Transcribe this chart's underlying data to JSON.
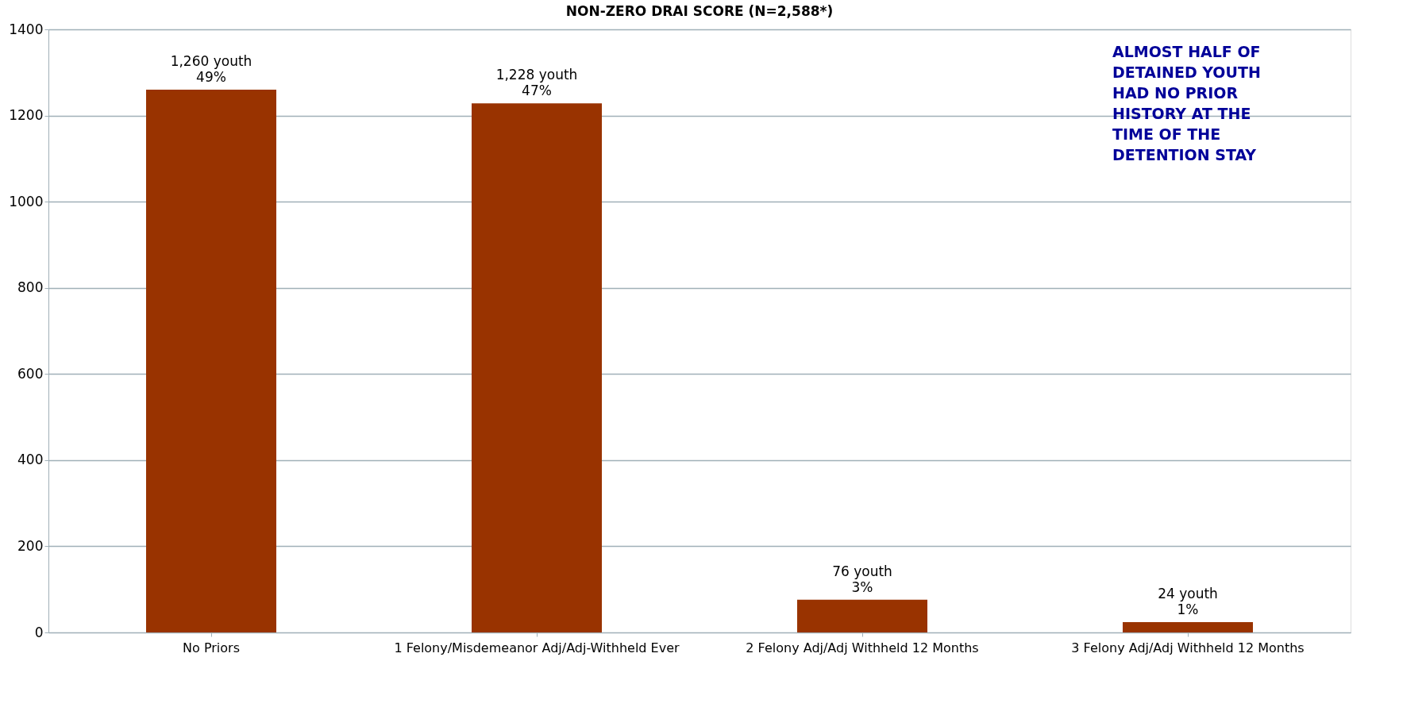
{
  "chart_data": {
    "type": "bar",
    "title": "NON-ZERO DRAI SCORE (N=2,588*)",
    "categories": [
      "No Priors",
      "1 Felony/Misdemeanor Adj/Adj-Withheld Ever",
      "2 Felony Adj/Adj Withheld 12 Months",
      "3 Felony Adj/Adj Withheld 12 Months"
    ],
    "values": [
      1260,
      1228,
      76,
      24
    ],
    "value_labels": [
      "1,260 youth\n49%",
      "1,228 youth\n47%",
      "76 youth\n3%",
      "24 youth\n1%"
    ],
    "color": "#993300",
    "ylim": [
      0,
      1400
    ],
    "yticks": [
      0,
      200,
      400,
      600,
      800,
      1000,
      1200,
      1400
    ],
    "grid": "y",
    "annotations": [
      "ALMOST HALF OF\nDETAINED YOUTH\nHAD NO PRIOR\nHISTORY AT THE\nTIME OF THE\nDETENTION STAY"
    ]
  }
}
